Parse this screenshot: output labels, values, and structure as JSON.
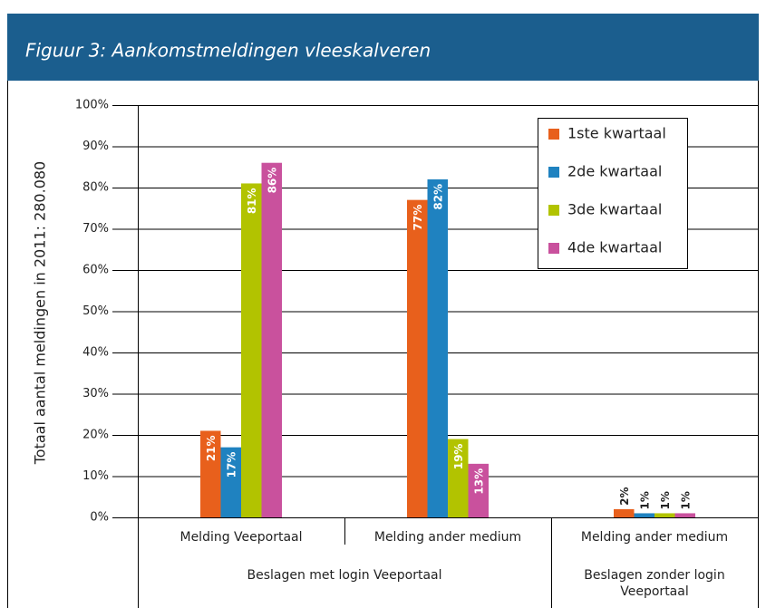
{
  "chart_data": {
    "type": "bar",
    "title": "Figuur 3: Aankomstmeldingen vleeskalveren",
    "y_label": "Totaal aantal meldingen in 2011: 280.080",
    "category_groups": [
      {
        "name": "Beslagen met login Veeportaal",
        "categories": [
          "Melding Veeportaal",
          "Melding ander medium"
        ]
      },
      {
        "name": "Beslagen zonder login Veeportaal",
        "categories": [
          "Melding ander medium"
        ]
      }
    ],
    "series": [
      {
        "name": "1ste kwartaal",
        "color": "#e8601c",
        "values": [
          21,
          77,
          2
        ],
        "value_labels": [
          "21%",
          "77%",
          "2%"
        ]
      },
      {
        "name": "2de kwartaal",
        "color": "#1f82c0",
        "values": [
          17,
          82,
          1
        ],
        "value_labels": [
          "17%",
          "82%",
          "1%"
        ]
      },
      {
        "name": "3de kwartaal",
        "color": "#b2c300",
        "values": [
          81,
          19,
          1
        ],
        "value_labels": [
          "81%",
          "19%",
          "1%"
        ]
      },
      {
        "name": "4de kwartaal",
        "color": "#c9519d",
        "values": [
          86,
          13,
          1
        ],
        "value_labels": [
          "86%",
          "13%",
          "1%"
        ]
      }
    ],
    "ylim": [
      0,
      100
    ],
    "yticks": [
      {
        "value": 0,
        "label": "0%"
      },
      {
        "value": 10,
        "label": "10%"
      },
      {
        "value": 20,
        "label": "20%"
      },
      {
        "value": 30,
        "label": "30%"
      },
      {
        "value": 40,
        "label": "40%"
      },
      {
        "value": 50,
        "label": "50%"
      },
      {
        "value": 60,
        "label": "60%"
      },
      {
        "value": 70,
        "label": "70%"
      },
      {
        "value": 80,
        "label": "80%"
      },
      {
        "value": 90,
        "label": "90%"
      },
      {
        "value": 100,
        "label": "100%"
      }
    ],
    "grid": true,
    "legend": "upper right"
  }
}
